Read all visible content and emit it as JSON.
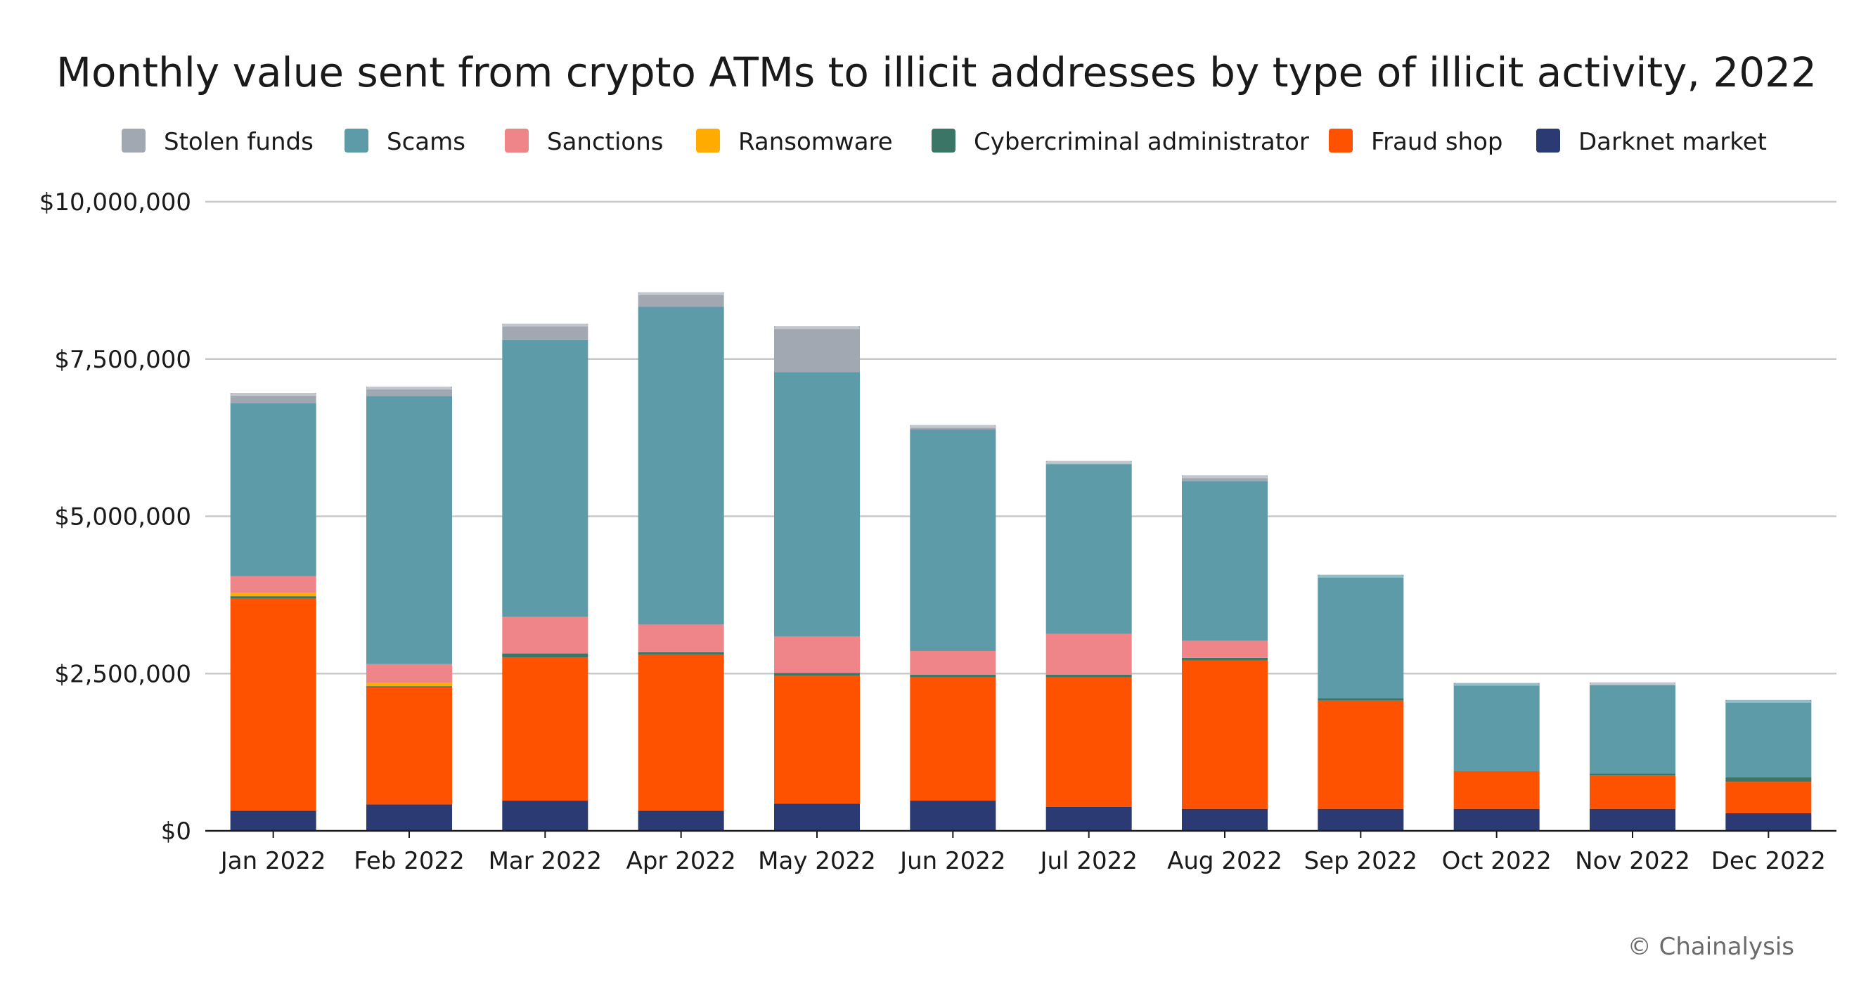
{
  "chart_data": {
    "type": "bar",
    "stacked": true,
    "title": "Monthly value sent from crypto ATMs to illicit addresses by type of illicit activity, 2022",
    "xlabel": "",
    "ylabel": "",
    "ylim": [
      0,
      10000000
    ],
    "yticks": [
      0,
      2500000,
      5000000,
      7500000,
      10000000
    ],
    "ytick_labels": [
      "$0",
      "$2,500,000",
      "$5,000,000",
      "$7,500,000",
      "$10,000,000"
    ],
    "grid": true,
    "legend_position": "top",
    "categories": [
      "Jan 2022",
      "Feb 2022",
      "Mar 2022",
      "Apr 2022",
      "May 2022",
      "Jun 2022",
      "Jul 2022",
      "Aug 2022",
      "Sep 2022",
      "Oct 2022",
      "Nov 2022",
      "Dec 2022"
    ],
    "legend_order": [
      "Stolen funds",
      "Scams",
      "Sanctions",
      "Ransomware",
      "Cybercriminal administrator",
      "Fraud shop",
      "Darknet market"
    ],
    "series": [
      {
        "name": "Darknet market",
        "color": "#2b3a73",
        "values": [
          320000,
          420000,
          480000,
          320000,
          430000,
          480000,
          380000,
          350000,
          350000,
          350000,
          350000,
          280000
        ]
      },
      {
        "name": "Fraud shop",
        "color": "#ff5200",
        "values": [
          3370000,
          1860000,
          2280000,
          2480000,
          2040000,
          1960000,
          2060000,
          2360000,
          1720000,
          600000,
          530000,
          500000
        ]
      },
      {
        "name": "Cybercriminal administrator",
        "color": "#3b7565",
        "values": [
          40000,
          20000,
          60000,
          40000,
          40000,
          40000,
          40000,
          40000,
          40000,
          0,
          30000,
          70000
        ]
      },
      {
        "name": "Ransomware",
        "color": "#ffab00",
        "values": [
          50000,
          50000,
          0,
          0,
          0,
          0,
          0,
          0,
          0,
          0,
          0,
          0
        ]
      },
      {
        "name": "Sanctions",
        "color": "#f08589",
        "values": [
          270000,
          300000,
          580000,
          440000,
          580000,
          380000,
          650000,
          270000,
          0,
          0,
          0,
          0
        ]
      },
      {
        "name": "Scams",
        "color": "#5e9ba8",
        "values": [
          2750000,
          4260000,
          4400000,
          5050000,
          4200000,
          3520000,
          2700000,
          2540000,
          1960000,
          1400000,
          1410000,
          1230000
        ]
      },
      {
        "name": "Stolen funds",
        "color": "#a2a8b2",
        "values": [
          160000,
          150000,
          260000,
          230000,
          730000,
          70000,
          50000,
          90000,
          0,
          0,
          40000,
          0
        ]
      }
    ]
  },
  "credit": "© Chainalysis",
  "colors": {
    "grid": "#c8c8c8",
    "axis": "#1a1a1a"
  }
}
